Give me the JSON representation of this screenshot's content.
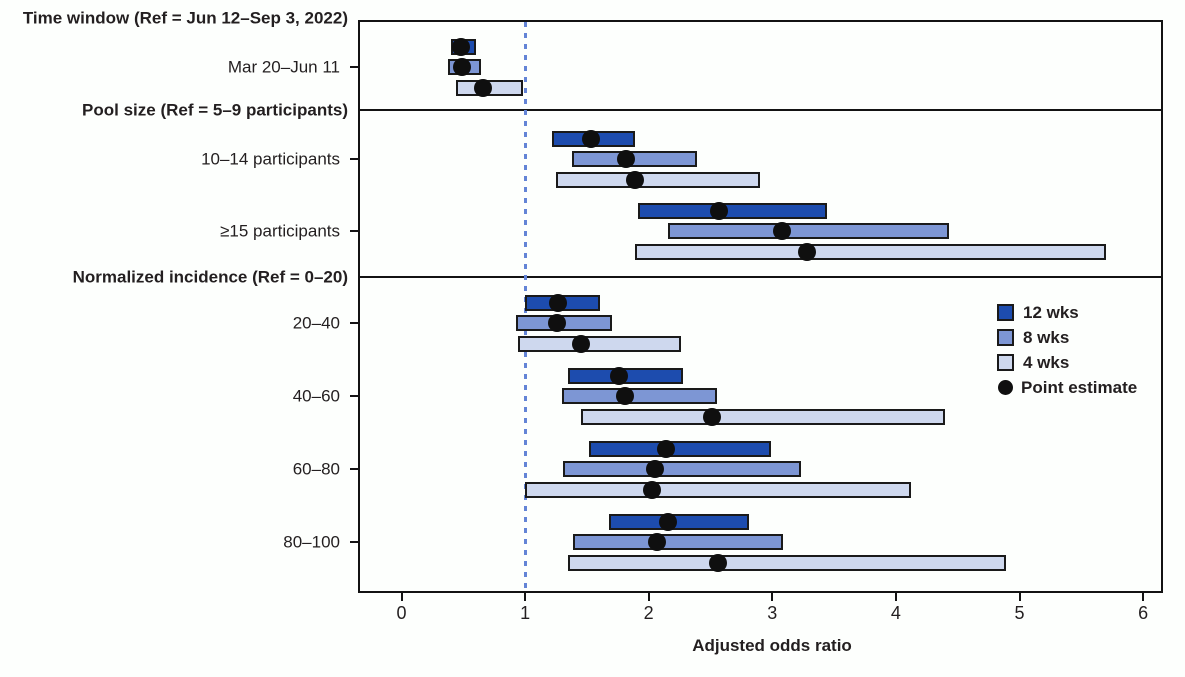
{
  "chart_data": {
    "type": "bar",
    "subtype": "horizontal-range-forest-plot",
    "xlabel": "Adjusted odds ratio",
    "xlim": [
      0,
      6
    ],
    "x_ticks": [
      0,
      1,
      2,
      3,
      4,
      5,
      6
    ],
    "reference_line": 1,
    "grid": false,
    "legend_position": "right-middle",
    "series_names": [
      "12 wks",
      "8 wks",
      "4 wks"
    ],
    "colors": {
      "12 wks": "#1d4cae",
      "8 wks": "#7d96d4",
      "4 wks": "#ced8ee",
      "point_estimate": "#0f0f0f",
      "reference_line": "#6384d6",
      "frame": "#131313"
    },
    "legend": [
      {
        "label": "12 wks",
        "swatch": "dark-blue-square"
      },
      {
        "label": "8 wks",
        "swatch": "medium-blue-square"
      },
      {
        "label": "4 wks",
        "swatch": "light-blue-square"
      },
      {
        "label": "Point estimate",
        "swatch": "black-dot"
      }
    ],
    "sections": [
      {
        "header": "Time window (Ref = Jun 12–Sep 3, 2022)",
        "categories": [
          {
            "label": "Mar 20–Jun 11",
            "estimates": [
              {
                "series": "12 wks",
                "ci_low": 0.4,
                "ci_high": 0.6,
                "point": 0.48
              },
              {
                "series": "8 wks",
                "ci_low": 0.38,
                "ci_high": 0.64,
                "point": 0.49
              },
              {
                "series": "4 wks",
                "ci_low": 0.44,
                "ci_high": 0.98,
                "point": 0.66
              }
            ]
          }
        ]
      },
      {
        "header": "Pool size (Ref = 5–9 participants)",
        "categories": [
          {
            "label": "10–14 participants",
            "estimates": [
              {
                "series": "12 wks",
                "ci_low": 1.22,
                "ci_high": 1.89,
                "point": 1.53
              },
              {
                "series": "8 wks",
                "ci_low": 1.38,
                "ci_high": 2.39,
                "point": 1.82
              },
              {
                "series": "4 wks",
                "ci_low": 1.25,
                "ci_high": 2.9,
                "point": 1.89
              }
            ]
          },
          {
            "label": "≥15 participants",
            "estimates": [
              {
                "series": "12 wks",
                "ci_low": 1.91,
                "ci_high": 3.44,
                "point": 2.57
              },
              {
                "series": "8 wks",
                "ci_low": 2.16,
                "ci_high": 4.43,
                "point": 3.08
              },
              {
                "series": "4 wks",
                "ci_low": 1.89,
                "ci_high": 5.7,
                "point": 3.28
              }
            ]
          }
        ]
      },
      {
        "header": "Normalized incidence (Ref = 0–20)",
        "categories": [
          {
            "label": "20–40",
            "estimates": [
              {
                "series": "12 wks",
                "ci_low": 1.0,
                "ci_high": 1.61,
                "point": 1.27
              },
              {
                "series": "8 wks",
                "ci_low": 0.93,
                "ci_high": 1.7,
                "point": 1.26
              },
              {
                "series": "4 wks",
                "ci_low": 0.94,
                "ci_high": 2.26,
                "point": 1.45
              }
            ]
          },
          {
            "label": "40–60",
            "estimates": [
              {
                "series": "12 wks",
                "ci_low": 1.35,
                "ci_high": 2.28,
                "point": 1.76
              },
              {
                "series": "8 wks",
                "ci_low": 1.3,
                "ci_high": 2.55,
                "point": 1.81
              },
              {
                "series": "4 wks",
                "ci_low": 1.45,
                "ci_high": 4.4,
                "point": 2.51
              }
            ]
          },
          {
            "label": "60–80",
            "estimates": [
              {
                "series": "12 wks",
                "ci_low": 1.52,
                "ci_high": 2.99,
                "point": 2.14
              },
              {
                "series": "8 wks",
                "ci_low": 1.31,
                "ci_high": 3.23,
                "point": 2.05
              },
              {
                "series": "4 wks",
                "ci_low": 1.0,
                "ci_high": 4.12,
                "point": 2.03
              }
            ]
          },
          {
            "label": "80–100",
            "estimates": [
              {
                "series": "12 wks",
                "ci_low": 1.68,
                "ci_high": 2.81,
                "point": 2.16
              },
              {
                "series": "8 wks",
                "ci_low": 1.39,
                "ci_high": 3.09,
                "point": 2.07
              },
              {
                "series": "4 wks",
                "ci_low": 1.35,
                "ci_high": 4.89,
                "point": 2.56
              }
            ]
          }
        ]
      }
    ]
  }
}
